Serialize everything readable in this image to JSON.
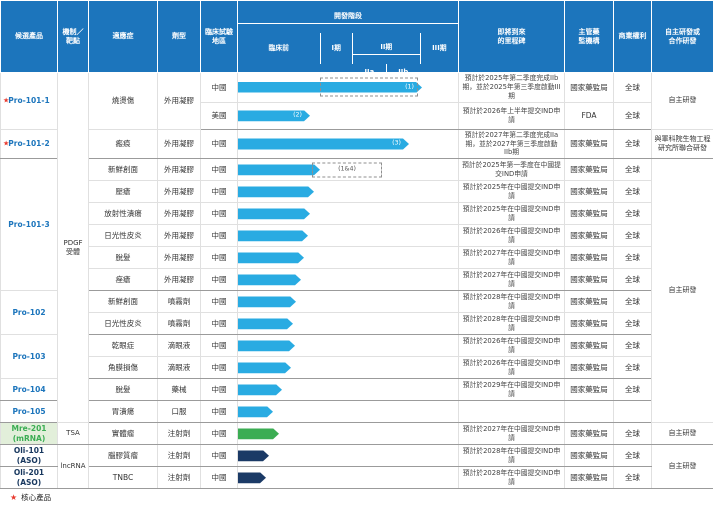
{
  "header": {
    "product": "候選產品",
    "mechanism": "機制／\n靶點",
    "indication": "適應症",
    "type": "劑型",
    "region": "臨床試驗\n地區",
    "dev_stage": "開發階段",
    "stages": {
      "pre": "臨床前",
      "p1": "I期",
      "p2": "II期",
      "p2a": "IIa",
      "p2b": "IIb",
      "p3": "III期"
    },
    "milestone": "即將到來\n的里程碑",
    "regulator": "主管藥\n監機構",
    "commercial": "商業權利",
    "rd": "自主研發或\n合作研發"
  },
  "products": [
    {
      "name": "Pro-101-1"
    },
    {
      "name": "Pro-101-2"
    },
    {
      "name": "Pro-101-3"
    },
    {
      "name": "Pro-102"
    },
    {
      "name": "Pro-103"
    },
    {
      "name": "Pro-104"
    },
    {
      "name": "Pro-105"
    },
    {
      "name": "Mre-201\n(mRNA)"
    },
    {
      "name": "Oli-101\n(ASO)"
    },
    {
      "name": "Oli-201\n(ASO)"
    }
  ],
  "mechanisms": {
    "pdgf": "PDGF\n受體",
    "tsa": "TSA",
    "lncrna": "lncRNA"
  },
  "rd": {
    "self": "自主研發",
    "joint": "與軍科院生物工程研究所聯合研發"
  },
  "icons": {
    "star": "★"
  },
  "footer": {
    "core_label": "核心產品"
  },
  "colors": {
    "header_blue": "#1C75BC",
    "bar_blue": "#29ABE2",
    "bar_green": "#3BAD53",
    "bar_navy": "#1B3A66",
    "star_red": "#E8392E",
    "mre_bg": "#E2EFDA"
  },
  "rows": [
    {
      "indication": "燒燙傷",
      "type": "外用凝膠",
      "region": "中國",
      "milestone": "預計於2025年第二季度完成IIb期，並於2025年第三季度啟動III期",
      "regulator": "國家藥監局",
      "commercial": "全球",
      "bar": {
        "solid": 176,
        "color": "#29ABE2",
        "label": "(1)",
        "dash_box": [
          82,
          96
        ]
      }
    },
    {
      "region": "美國",
      "milestone": "預計於2026年上半年提交IND申請",
      "regulator": "FDA",
      "commercial": "全球",
      "bar": {
        "solid": 64,
        "color": "#29ABE2",
        "label": "(2)"
      }
    },
    {
      "indication": "瘢痕",
      "type": "外用凝膠",
      "region": "中國",
      "milestone": "預計於2027年第二季度完成IIa期，並於2027年第三季度啟動IIb期",
      "regulator": "國家藥監局",
      "commercial": "全球",
      "bar": {
        "solid": 163,
        "color": "#29ABE2",
        "label": "(3)"
      }
    },
    {
      "indication": "新鮮創面",
      "type": "外用凝膠",
      "region": "中國",
      "milestone": "預計於2025年第一季度在中國提交IND申請",
      "regulator": "國家藥監局",
      "commercial": "全球",
      "bar": {
        "solid": 74,
        "color": "#29ABE2",
        "dash_arrow": [
          74,
          68
        ],
        "dash_label": "(1&4)"
      }
    },
    {
      "indication": "壓瘡",
      "type": "外用凝膠",
      "region": "中國",
      "milestone": "預計於2025年在中國提交IND申請",
      "regulator": "國家藥監局",
      "commercial": "全球",
      "bar": {
        "solid": 68,
        "color": "#29ABE2"
      }
    },
    {
      "indication": "放射性潰瘍",
      "type": "外用凝膠",
      "region": "中國",
      "milestone": "預計於2025年在中國提交IND申請",
      "regulator": "國家藥監局",
      "commercial": "全球",
      "bar": {
        "solid": 64,
        "color": "#29ABE2"
      }
    },
    {
      "indication": "日光性皮炎",
      "type": "外用凝膠",
      "region": "中國",
      "milestone": "預計於2026年在中國提交IND申請",
      "regulator": "國家藥監局",
      "commercial": "全球",
      "bar": {
        "solid": 62,
        "color": "#29ABE2"
      }
    },
    {
      "indication": "脫髮",
      "type": "外用凝膠",
      "region": "中國",
      "milestone": "預計於2027年在中國提交IND申請",
      "regulator": "國家藥監局",
      "commercial": "全球",
      "bar": {
        "solid": 58,
        "color": "#29ABE2"
      }
    },
    {
      "indication": "痤瘡",
      "type": "外用凝膠",
      "region": "中國",
      "milestone": "預計於2027年在中國提交IND申請",
      "regulator": "國家藥監局",
      "commercial": "全球",
      "bar": {
        "solid": 55,
        "color": "#29ABE2"
      }
    },
    {
      "indication": "新鮮創面",
      "type": "噴霧劑",
      "region": "中國",
      "milestone": "預計於2028年在中國提交IND申請",
      "regulator": "國家藥監局",
      "commercial": "全球",
      "bar": {
        "solid": 50,
        "color": "#29ABE2"
      }
    },
    {
      "indication": "日光性皮炎",
      "type": "噴霧劑",
      "region": "中國",
      "milestone": "預計於2028年在中國提交IND申請",
      "regulator": "國家藥監局",
      "commercial": "全球",
      "bar": {
        "solid": 47,
        "color": "#29ABE2"
      }
    },
    {
      "indication": "乾眼症",
      "type": "滴眼液",
      "region": "中國",
      "milestone": "預計於2026年在中國提交IND申請",
      "regulator": "國家藥監局",
      "commercial": "全球",
      "bar": {
        "solid": 49,
        "color": "#29ABE2"
      }
    },
    {
      "indication": "角膜損傷",
      "type": "滴眼液",
      "region": "中國",
      "milestone": "預計於2026年在中國提交IND申請",
      "regulator": "國家藥監局",
      "commercial": "全球",
      "bar": {
        "solid": 45,
        "color": "#29ABE2"
      }
    },
    {
      "indication": "脫髮",
      "type": "藥械",
      "region": "中國",
      "milestone": "預計於2029年在中國提交IND申請",
      "regulator": "國家藥監局",
      "commercial": "全球",
      "bar": {
        "solid": 36,
        "color": "#29ABE2"
      }
    },
    {
      "indication": "胃潰瘍",
      "type": "口服",
      "region": "中國",
      "milestone": "",
      "regulator": "",
      "commercial": "",
      "bar": {
        "solid": 27,
        "color": "#29ABE2"
      }
    },
    {
      "indication": "實體瘤",
      "type": "注射劑",
      "region": "中國",
      "milestone": "預計於2027年在中國提交IND申請",
      "regulator": "國家藥監局",
      "commercial": "全球",
      "bar": {
        "solid": 33,
        "color": "#3BAD53"
      }
    },
    {
      "indication": "腦膠質瘤",
      "type": "注射劑",
      "region": "中國",
      "milestone": "預計於2028年在中國提交IND申請",
      "regulator": "國家藥監局",
      "commercial": "全球",
      "bar": {
        "solid": 23,
        "color": "#1B3A66"
      }
    },
    {
      "indication": "TNBC",
      "type": "注射劑",
      "region": "中國",
      "milestone": "預計於2028年在中國提交IND申請",
      "regulator": "國家藥監局",
      "commercial": "全球",
      "bar": {
        "solid": 20,
        "color": "#1B3A66"
      }
    }
  ]
}
